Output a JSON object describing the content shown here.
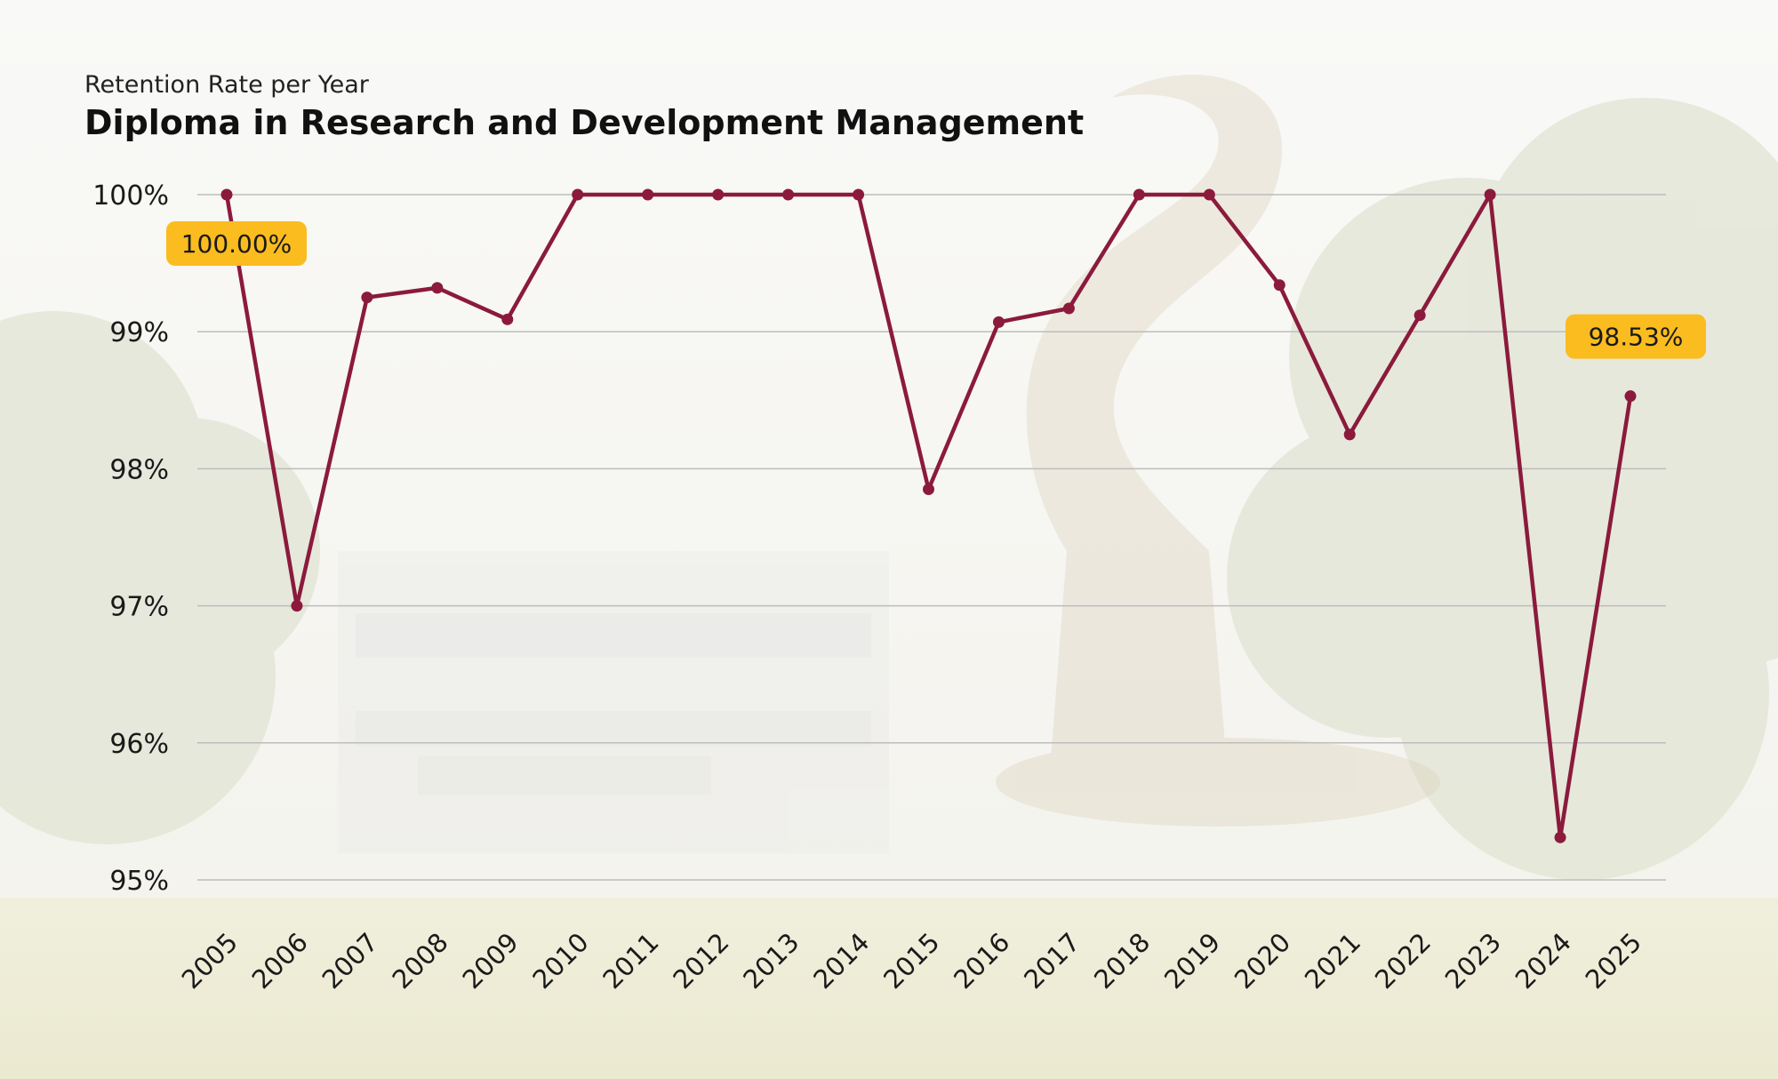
{
  "header": {
    "subtitle": "Retention Rate per Year",
    "title": "Diploma in Research and Development Management"
  },
  "colors": {
    "line": "#8b1a3c",
    "callout": "#fbbc1f",
    "grid": "#bdbdbd"
  },
  "chart_data": {
    "type": "line",
    "title": "Diploma in Research and Development Management",
    "subtitle": "Retention Rate per Year",
    "xlabel": "",
    "ylabel": "",
    "categories": [
      "2005",
      "2006",
      "2007",
      "2008",
      "2009",
      "2010",
      "2011",
      "2012",
      "2013",
      "2014",
      "2015",
      "2016",
      "2017",
      "2018",
      "2019",
      "2020",
      "2021",
      "2022",
      "2023",
      "2024",
      "2025"
    ],
    "series": [
      {
        "name": "Retention Rate",
        "values": [
          100.0,
          97.0,
          99.25,
          99.32,
          99.09,
          100.0,
          100.0,
          100.0,
          100.0,
          100.0,
          97.85,
          99.07,
          99.17,
          100.0,
          100.0,
          99.34,
          98.25,
          99.12,
          100.0,
          95.31,
          98.53
        ]
      }
    ],
    "ylim": [
      95,
      100
    ],
    "yticks": [
      {
        "value": 100,
        "label": "100%"
      },
      {
        "value": 99,
        "label": "99%"
      },
      {
        "value": 98,
        "label": "98%"
      },
      {
        "value": 97,
        "label": "97%"
      },
      {
        "value": 96,
        "label": "96%"
      },
      {
        "value": 95,
        "label": "95%"
      }
    ],
    "grid": true,
    "annotations": [
      {
        "category": "2005",
        "label": "100.00%",
        "placement": "below"
      },
      {
        "category": "2025",
        "label": "98.53%",
        "placement": "above"
      }
    ]
  }
}
